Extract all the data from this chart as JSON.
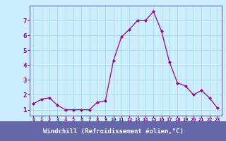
{
  "x": [
    0,
    1,
    2,
    3,
    4,
    5,
    6,
    7,
    8,
    9,
    10,
    11,
    12,
    13,
    14,
    15,
    16,
    17,
    18,
    19,
    20,
    21,
    22,
    23
  ],
  "y": [
    1.4,
    1.7,
    1.8,
    1.3,
    1.0,
    1.0,
    1.0,
    1.0,
    1.5,
    1.6,
    4.3,
    5.9,
    6.4,
    7.0,
    7.0,
    7.6,
    6.3,
    4.2,
    2.8,
    2.6,
    2.0,
    2.3,
    1.8,
    1.1
  ],
  "line_color": "#990099",
  "marker": "D",
  "marker_size": 2.0,
  "bg_color": "#cceeff",
  "grid_color": "#aadddd",
  "xlabel": "Windchill (Refroidissement éolien,°C)",
  "xlabel_bg": "#6666aa",
  "xlabel_color": "#ffffff",
  "ylabel_ticks": [
    1,
    2,
    3,
    4,
    5,
    6,
    7
  ],
  "xtick_labels": [
    "0",
    "1",
    "2",
    "3",
    "4",
    "5",
    "6",
    "7",
    "8",
    "9",
    "10",
    "11",
    "12",
    "13",
    "14",
    "15",
    "16",
    "17",
    "18",
    "19",
    "20",
    "21",
    "22",
    "23"
  ],
  "ylim": [
    0.6,
    8.0
  ],
  "xlim": [
    -0.5,
    23.5
  ],
  "axis_color": "#6666aa",
  "tick_color": "#880088"
}
